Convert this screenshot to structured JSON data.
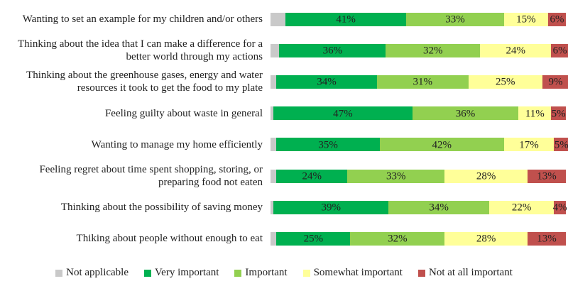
{
  "chart_data": {
    "type": "stacked-bar-horizontal",
    "categories": [
      "Wanting to set an example for my children and/or others",
      "Thinking about the idea that I can make a difference for a better world through my actions",
      "Thinking about the greenhouse gases, energy and water resources it took to get the food to my plate",
      "Feeling guilty about waste in general",
      "Wanting to manage my home efficiently",
      "Feeling regret about time spent shopping, storing, or preparing food not eaten",
      "Thinking about the possibility of saving money",
      "Thiking about people without enough to eat"
    ],
    "xlim": [
      0,
      100
    ],
    "series": [
      {
        "name": "Not applicable",
        "color": "#c9c9c9",
        "values": [
          5,
          3,
          2,
          1,
          2,
          2,
          1,
          2
        ]
      },
      {
        "name": "Very important",
        "color": "#00b050",
        "values": [
          41,
          36,
          34,
          47,
          35,
          24,
          39,
          25
        ],
        "value_labels": [
          "41%",
          "36%",
          "34%",
          "47%",
          "35%",
          "24%",
          "39%",
          "25%"
        ]
      },
      {
        "name": "Important",
        "color": "#92d050",
        "values": [
          33,
          32,
          31,
          36,
          42,
          33,
          34,
          32
        ],
        "value_labels": [
          "33%",
          "32%",
          "31%",
          "36%",
          "42%",
          "33%",
          "34%",
          "32%"
        ]
      },
      {
        "name": "Somewhat important",
        "color": "#ffff99",
        "values": [
          15,
          24,
          25,
          11,
          17,
          28,
          22,
          28
        ],
        "value_labels": [
          "15%",
          "24%",
          "25%",
          "11%",
          "17%",
          "28%",
          "22%",
          "28%"
        ]
      },
      {
        "name": "Not at all important",
        "color": "#c0504d",
        "values": [
          6,
          6,
          9,
          5,
          5,
          13,
          4,
          13
        ],
        "value_labels": [
          "6%",
          "6%",
          "9%",
          "5%",
          "5%",
          "13%",
          "4%",
          "13%"
        ]
      }
    ],
    "legend": "bottom"
  }
}
